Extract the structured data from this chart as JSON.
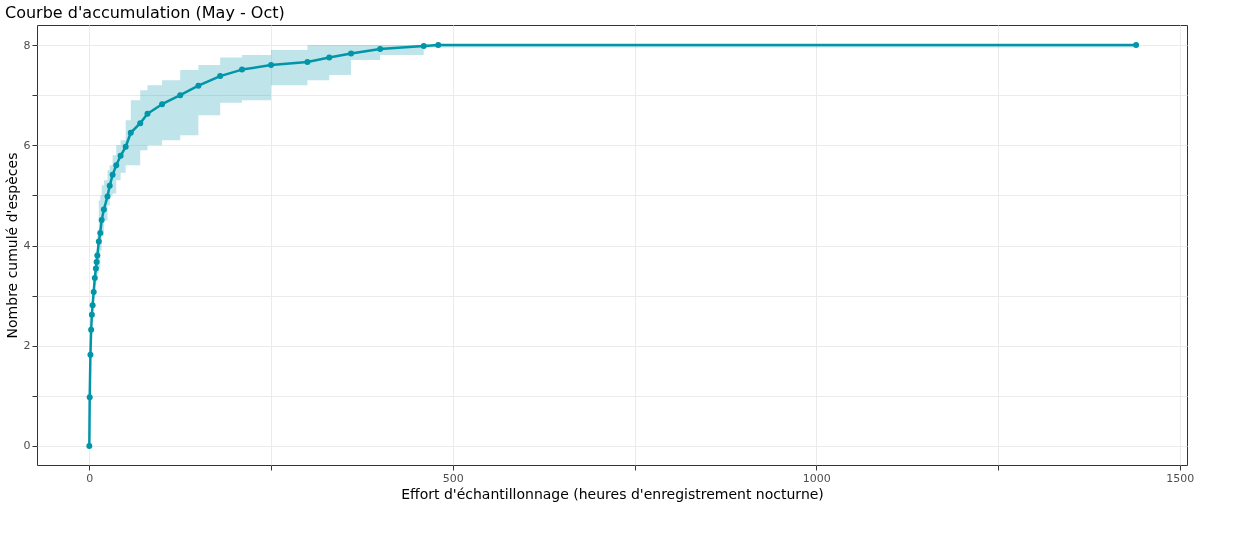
{
  "chart_data": {
    "type": "line",
    "title": "Courbe d'accumulation (May - Oct)",
    "xlabel": "Effort d'échantillonnage (heures d'enregistrement nocturne)",
    "ylabel": "Nombre cumulé d'espèces",
    "x": [
      0,
      0.5,
      1.5,
      2.5,
      3.5,
      4.5,
      6,
      7.5,
      9,
      10,
      11,
      13,
      15,
      17,
      20,
      25,
      28,
      32,
      37,
      43,
      50,
      57,
      70,
      80,
      100,
      125,
      150,
      180,
      210,
      250,
      300,
      330,
      360,
      400,
      460,
      480,
      1440
    ],
    "series": [
      {
        "color": "#0095a8",
        "values": [
          0,
          0.97,
          1.82,
          2.32,
          2.62,
          2.81,
          3.07,
          3.35,
          3.54,
          3.67,
          3.8,
          4.08,
          4.25,
          4.51,
          4.72,
          4.98,
          5.19,
          5.41,
          5.6,
          5.79,
          5.97,
          6.25,
          6.44,
          6.63,
          6.82,
          7.0,
          7.19,
          7.38,
          7.51,
          7.6,
          7.66,
          7.75,
          7.83,
          7.92,
          7.98,
          8,
          8
        ],
        "lower": [
          0,
          0.97,
          1.82,
          2.32,
          2.62,
          2.81,
          3.07,
          3.2,
          3.3,
          3.4,
          3.45,
          3.54,
          3.9,
          4.2,
          4.5,
          4.8,
          5.0,
          5.04,
          5.3,
          5.45,
          5.6,
          5.6,
          5.9,
          6.0,
          6.1,
          6.2,
          6.6,
          6.85,
          6.9,
          7.2,
          7.3,
          7.4,
          7.7,
          7.8,
          7.95,
          7.95,
          8
        ],
        "upper": [
          0,
          0.97,
          1.82,
          2.32,
          2.62,
          2.81,
          3.07,
          3.5,
          3.75,
          3.9,
          4.2,
          4.9,
          5.0,
          5.2,
          5.3,
          5.5,
          5.6,
          5.8,
          6.0,
          6.1,
          6.5,
          6.9,
          7.1,
          7.2,
          7.3,
          7.5,
          7.6,
          7.75,
          7.8,
          7.9,
          8,
          8,
          8,
          8,
          8,
          8,
          8
        ]
      }
    ],
    "xlim": [
      -72,
      1510
    ],
    "ylim": [
      -0.38,
      8.4
    ],
    "xticks": [
      0,
      {
        "value": 250,
        "label": null
      },
      500,
      {
        "value": 750,
        "label": null
      },
      1000,
      {
        "value": 1250,
        "label": null
      },
      1500
    ],
    "yticks": [
      0,
      {
        "value": 1,
        "label": null
      },
      2,
      {
        "value": 3,
        "label": null
      },
      4,
      {
        "value": 5,
        "label": null
      },
      6,
      {
        "value": 7,
        "label": null
      },
      8
    ],
    "grid": true,
    "marker": "circle",
    "line_style": "solid"
  }
}
